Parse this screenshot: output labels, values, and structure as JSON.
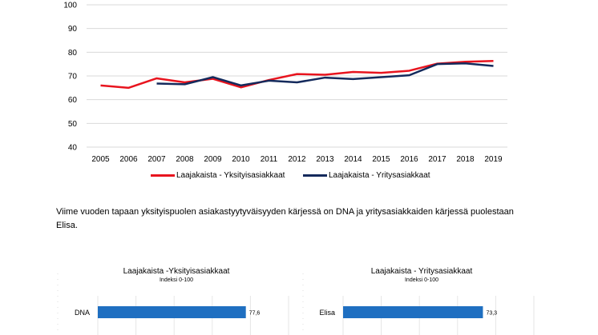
{
  "chart_data": [
    {
      "type": "line",
      "title": "",
      "xlabel": "",
      "ylabel": "",
      "ylim": [
        40,
        100
      ],
      "yticks": [
        40,
        50,
        60,
        70,
        80,
        90,
        100
      ],
      "x": [
        "2005",
        "2006",
        "2007",
        "2008",
        "2009",
        "2010",
        "2011",
        "2012",
        "2013",
        "2014",
        "2015",
        "2016",
        "2017",
        "2018",
        "2019"
      ],
      "series": [
        {
          "name": "Laajakaista - Yksityisasiakkaat",
          "color": "#e8141e",
          "values": [
            66.0,
            65.0,
            69.0,
            67.3,
            68.8,
            65.2,
            68.3,
            70.8,
            70.5,
            71.7,
            71.3,
            72.2,
            75.2,
            76.0,
            76.3
          ]
        },
        {
          "name": "Laajakaista - Yritysasiakkaat",
          "color": "#142a5c",
          "values": [
            null,
            null,
            66.8,
            66.5,
            69.5,
            66.0,
            68.0,
            67.3,
            69.3,
            68.7,
            69.5,
            70.3,
            75.0,
            75.3,
            74.2
          ]
        }
      ],
      "grid": true,
      "legend": "bottom-center"
    },
    {
      "type": "bar",
      "orientation": "horizontal",
      "title": "Laajakaista -Yksityisasiakkaat",
      "subtitle": "Indeksi 0-100",
      "categories": [
        "DNA"
      ],
      "values": [
        77.6
      ],
      "value_labels": [
        "77,6"
      ],
      "xlim": [
        0,
        100
      ]
    },
    {
      "type": "bar",
      "orientation": "horizontal",
      "title": "Laajakaista - Yritysasiakkaat",
      "subtitle": "Indeksi 0-100",
      "categories": [
        "Elisa"
      ],
      "values": [
        73.3
      ],
      "value_labels": [
        "73,3"
      ],
      "xlim": [
        0,
        100
      ]
    }
  ],
  "body_text": "Viime vuoden tapaan yksityispuolen asiakastyytyväisyyden kärjessä on DNA ja yritysasiakkaiden kärjessä puolestaan Elisa.",
  "colors": {
    "bar": "#1f6fc1",
    "grid": "#d9d9d9"
  }
}
